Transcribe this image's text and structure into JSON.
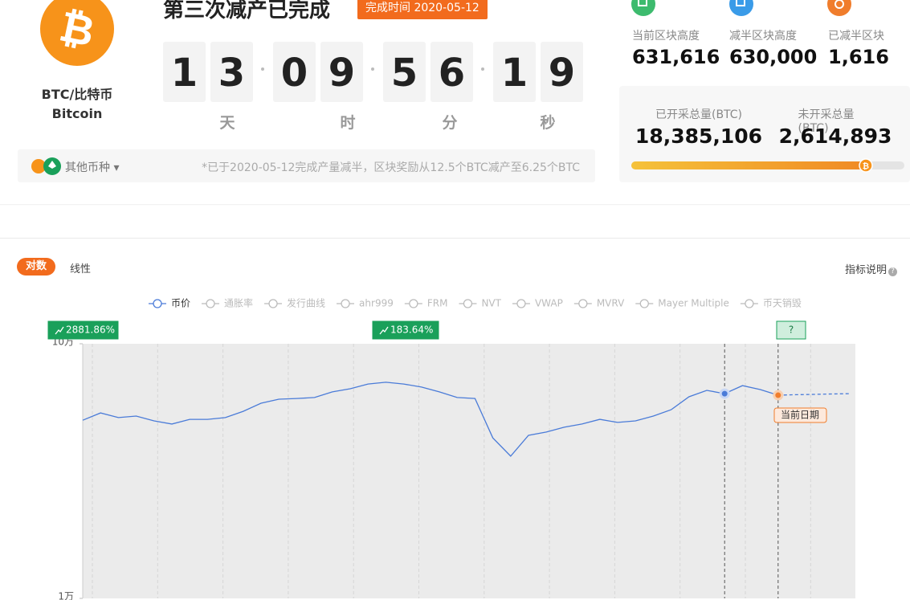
{
  "header": {
    "coin_symbol": "BTC/比特币",
    "coin_name": "Bitcoin",
    "title": "第三次减产已完成",
    "badge": "完成时间 2020-05-12"
  },
  "countdown": [
    [
      "1",
      "3"
    ],
    [
      "0",
      "9"
    ],
    [
      "5",
      "6"
    ],
    [
      "1",
      "9"
    ]
  ],
  "countdown_units": [
    "天",
    "时",
    "分",
    "秒"
  ],
  "coin_switch": "其他币种",
  "halving_note": "*已于2020-05-12完成产量减半，区块奖励从12.5个BTC减产至6.25个BTC",
  "stats": [
    {
      "label": "当前区块高度",
      "value": "631,616"
    },
    {
      "label": "减半区块高度",
      "value": "630,000"
    },
    {
      "label": "已减半区块",
      "value": "1,616"
    }
  ],
  "supply": [
    {
      "label": "已开采总量(BTC)",
      "value": "18,385,106"
    },
    {
      "label": "未开采总量(BTC)",
      "value": "2,614,893"
    }
  ],
  "tabs": [
    "对数",
    "线性"
  ],
  "indicator_help": "指标说明",
  "chart_data": {
    "type": "line",
    "log_scale": true,
    "ylim": [
      10000,
      100000
    ],
    "yticks": [
      {
        "value": 100000,
        "label": "10万"
      },
      {
        "value": 10000,
        "label": "1万"
      }
    ],
    "categories": [
      null,
      null,
      null,
      null,
      null,
      null,
      null,
      null,
      null,
      null,
      null,
      null,
      null,
      null,
      null,
      null,
      null,
      null,
      null,
      null,
      null,
      null,
      null,
      null,
      null,
      null,
      null,
      null,
      null,
      null,
      null,
      null,
      null,
      null,
      null,
      null,
      null,
      null,
      null,
      null,
      null,
      null,
      null,
      null
    ],
    "series": [
      {
        "name": "币价",
        "color": "#4a7bd8",
        "values": [
          50100,
          53500,
          51300,
          52000,
          49800,
          48400,
          50500,
          50500,
          51300,
          54300,
          58400,
          60600,
          61000,
          61500,
          64700,
          66600,
          69500,
          70600,
          69500,
          67600,
          64700,
          61500,
          61000,
          42700,
          36200,
          43700,
          45000,
          47000,
          48400,
          50500,
          49100,
          49800,
          52000,
          55100,
          61900,
          65600,
          63700,
          68500,
          66100,
          62800,
          null,
          null,
          null,
          null
        ]
      }
    ],
    "projection": {
      "color": "#4a7bd8",
      "values": [
        null,
        null,
        null,
        null,
        null,
        null,
        null,
        null,
        null,
        null,
        null,
        null,
        null,
        null,
        null,
        null,
        null,
        null,
        null,
        null,
        null,
        null,
        null,
        null,
        null,
        null,
        null,
        null,
        null,
        null,
        null,
        null,
        null,
        null,
        null,
        null,
        null,
        null,
        null,
        62800,
        63100,
        63300,
        63500,
        63700
      ]
    },
    "inactive_series": [
      "通胀率",
      "发行曲线",
      "ahr999",
      "FRM",
      "NVT",
      "VWAP",
      "MVRV",
      "Mayer Multiple",
      "币天销毁"
    ],
    "annotations": [
      {
        "text": "2881.86%"
      },
      {
        "text": "183.64%"
      },
      {
        "text": "?"
      }
    ],
    "current_date_label": "当前日期",
    "background": "#ebebeb"
  }
}
